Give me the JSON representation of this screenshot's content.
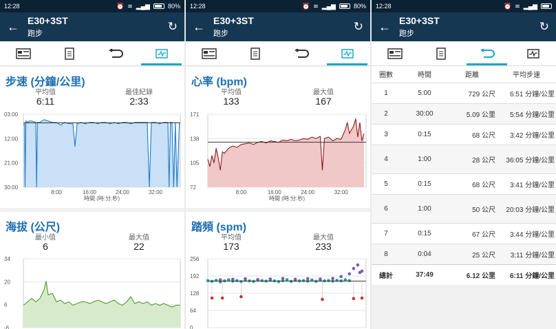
{
  "status": {
    "time": "12:28",
    "battery": "80%"
  },
  "app": {
    "title": "E30+3ST",
    "subtitle": "跑步"
  },
  "icons": {
    "back": "arrow-left-icon",
    "refresh": "refresh-icon",
    "tab_summary": "summary-card-icon",
    "tab_details": "document-icon",
    "tab_laps": "laps-loop-icon",
    "tab_charts": "chart-wave-icon"
  },
  "colors": {
    "appbar": "#163752",
    "statusbar": "#0b2235",
    "accent": "#19a5cf",
    "title": "#1d6fb0",
    "pace_fill": "#c9e0f6",
    "pace_line": "#1f7cc4",
    "hr_fill": "#f1c8c8",
    "hr_line": "#8e1b1b",
    "elev_fill": "#d7ebcc",
    "elev_line": "#4d9a2c",
    "cad_teal": "#2a9f9a",
    "cad_purple": "#7d5ab0",
    "cad_red": "#c0392b"
  },
  "panel1": {
    "pace": {
      "title": "步速 (分鐘/公里)",
      "stat1_label": "平均值",
      "stat1_value": "6:11",
      "stat2_label": "最佳紀錄",
      "stat2_value": "2:33",
      "chart_data": {
        "type": "area",
        "title": "步速 (分鐘/公里)",
        "xlabel": "時間 (時:分:秒)",
        "x_ticks": [
          "8:00",
          "16:00",
          "24:00",
          "32:00"
        ],
        "y_ticks": [
          "03:00",
          "12:00",
          "21:00",
          "30:00"
        ],
        "y_inverted": true,
        "ylim": [
          30,
          3
        ],
        "xlim": [
          0,
          38
        ],
        "average_line": 6.18,
        "series": [
          {
            "x": [
              0,
              0.3,
              0.4,
              0.6,
              1.2,
              1.4,
              2,
              3,
              3.2,
              3.4,
              4,
              5,
              6,
              7,
              8,
              9,
              10,
              11,
              12,
              12.5,
              13,
              14,
              15,
              16,
              17,
              18,
              19,
              20,
              21,
              22,
              23,
              24,
              25,
              26,
              27,
              28,
              29,
              30,
              30.5,
              31,
              32,
              33,
              34,
              35,
              35.3,
              35.6,
              36,
              36.4,
              36.8,
              37.2,
              37.8
            ],
            "y": [
              7,
              6.5,
              30,
              5.5,
              6,
              5.5,
              5.5,
              6,
              30,
              6,
              6,
              5,
              5.5,
              6,
              6,
              7,
              6,
              6.5,
              6.5,
              15,
              6.5,
              6,
              6.5,
              6,
              6,
              6.5,
              6,
              6,
              6.5,
              6,
              6.5,
              6,
              6,
              6.5,
              6,
              6,
              6,
              6,
              30,
              6,
              6,
              6.5,
              6,
              6,
              30,
              6,
              6,
              30,
              6,
              30,
              6
            ]
          }
        ]
      }
    },
    "elevation": {
      "title": "海拔 (公尺)",
      "stat1_label": "最小值",
      "stat1_value": "6",
      "stat2_label": "最大值",
      "stat2_value": "22",
      "chart_data": {
        "type": "area",
        "title": "海拔 (公尺)",
        "y_ticks": [
          "34",
          "20",
          "6",
          "-6"
        ],
        "ylim": [
          -6,
          34
        ],
        "xlim": [
          0,
          38
        ],
        "series": [
          {
            "x": [
              0,
              1,
              2,
              3,
              4,
              5,
              5.5,
              6,
              7,
              8,
              9,
              10,
              11,
              12,
              13,
              14,
              15,
              16,
              17,
              18,
              19,
              20,
              21,
              22,
              23,
              24,
              25,
              26,
              27,
              28,
              29,
              30,
              31,
              32,
              33,
              34,
              35,
              36,
              37,
              38
            ],
            "y": [
              7,
              9,
              11,
              9,
              11,
              16,
              21,
              13,
              14,
              9,
              10,
              8,
              9,
              7,
              8,
              9,
              9,
              8,
              9,
              10,
              9,
              8,
              9,
              10,
              8,
              7,
              9,
              12,
              8,
              9,
              8,
              9,
              7,
              8,
              7,
              8,
              7,
              6,
              7,
              7
            ]
          }
        ]
      }
    }
  },
  "panel2": {
    "hr": {
      "title": "心率 (bpm)",
      "stat1_label": "平均值",
      "stat1_value": "133",
      "stat2_label": "最大值",
      "stat2_value": "167",
      "chart_data": {
        "type": "area",
        "title": "心率 (bpm)",
        "xlabel": "時間 (時:分:秒)",
        "x_ticks": [
          "8:00",
          "16:00",
          "24:00",
          "32:00"
        ],
        "y_ticks": [
          "171",
          "138",
          "105",
          "72"
        ],
        "ylim": [
          72,
          171
        ],
        "xlim": [
          0,
          38
        ],
        "average_line": 133,
        "series": [
          {
            "x": [
              0,
              0.5,
              1,
              1.5,
              2,
              2.5,
              3,
              3.5,
              4,
              5,
              6,
              7,
              8,
              9,
              10,
              11,
              12,
              13,
              14,
              15,
              16,
              17,
              18,
              19,
              20,
              21,
              22,
              23,
              24,
              25,
              26,
              27,
              27.5,
              28,
              29,
              30,
              31,
              32,
              33,
              33.5,
              34,
              35,
              35.5,
              36,
              36.5,
              37,
              37.5
            ],
            "y": [
              110,
              100,
              115,
              105,
              125,
              112,
              95,
              120,
              118,
              125,
              128,
              126,
              130,
              131,
              132,
              130,
              133,
              134,
              132,
              135,
              134,
              133,
              136,
              135,
              137,
              135,
              136,
              138,
              137,
              140,
              138,
              141,
              95,
              138,
              140,
              135,
              138,
              137,
              150,
              160,
              145,
              155,
              165,
              140,
              160,
              135,
              145
            ]
          }
        ]
      }
    },
    "cadence": {
      "title": "踏頻 (spm)",
      "stat1_label": "平均值",
      "stat1_value": "173",
      "stat2_label": "最大值",
      "stat2_value": "233",
      "chart_data": {
        "type": "scatter",
        "title": "踏頻 (spm)",
        "y_ticks": [
          "256",
          "192",
          "128",
          "64",
          "0"
        ],
        "ylim": [
          0,
          256
        ],
        "xlim": [
          0,
          38
        ],
        "average_line": 173,
        "series": [
          {
            "name": "",
            "x": [
              0,
              1,
              2,
              3,
              4,
              5,
              6,
              7,
              8,
              9,
              10,
              11,
              12,
              13,
              14,
              15,
              16,
              17,
              18,
              19,
              20,
              21,
              22,
              23,
              24,
              25,
              26,
              27,
              28,
              29,
              30,
              31,
              32,
              33,
              34
            ],
            "y": [
              175,
              172,
              176,
              170,
              174,
              178,
              173,
              175,
              171,
              176,
              174,
              172,
              177,
              175,
              173,
              176,
              174,
              171,
              175,
              178,
              172,
              176,
              174,
              175,
              173,
              177,
              172,
              176,
              174,
              175,
              173,
              176,
              174,
              178,
              175
            ]
          },
          {
            "name": "",
            "x": [
              3,
              6,
              9,
              12,
              15,
              18,
              21,
              24,
              27,
              30,
              32,
              34,
              35,
              36,
              36.5,
              37
            ],
            "y": [
              178,
              180,
              182,
              179,
              181,
              183,
              180,
              182,
              181,
              183,
              190,
              200,
              220,
              233,
              205,
              210
            ]
          },
          {
            "name": "",
            "x": [
              1,
              3.5,
              8,
              27.5,
              35,
              37
            ],
            "y": [
              110,
              110,
              115,
              105,
              108,
              110
            ]
          }
        ]
      }
    }
  },
  "panel3": {
    "headers": [
      "圈數",
      "時間",
      "距離",
      "平均步速"
    ],
    "laps": [
      [
        "1",
        "5:00",
        "729 公尺",
        "6:51 分鐘/公里"
      ],
      [
        "2",
        "30:00",
        "5.09 公里",
        "5:54 分鐘/公里"
      ],
      [
        "3",
        "0:15",
        "68 公尺",
        "3:42 分鐘/公里"
      ],
      [
        "4",
        "1:00",
        "28 公尺",
        "36:05 分鐘/公里"
      ],
      [
        "5",
        "0:15",
        "68 公尺",
        "3:41 分鐘/公里"
      ],
      [
        "6",
        "1:00",
        "50 公尺",
        "20:03 分鐘/公里"
      ],
      [
        "7",
        "0:15",
        "67 公尺",
        "3:44 分鐘/公里"
      ],
      [
        "8",
        "0:04",
        "25 公尺",
        "3:11 分鐘/公里"
      ]
    ],
    "total": [
      "總計",
      "37:49",
      "6.12 公里",
      "6:11 分鐘/公里"
    ]
  }
}
